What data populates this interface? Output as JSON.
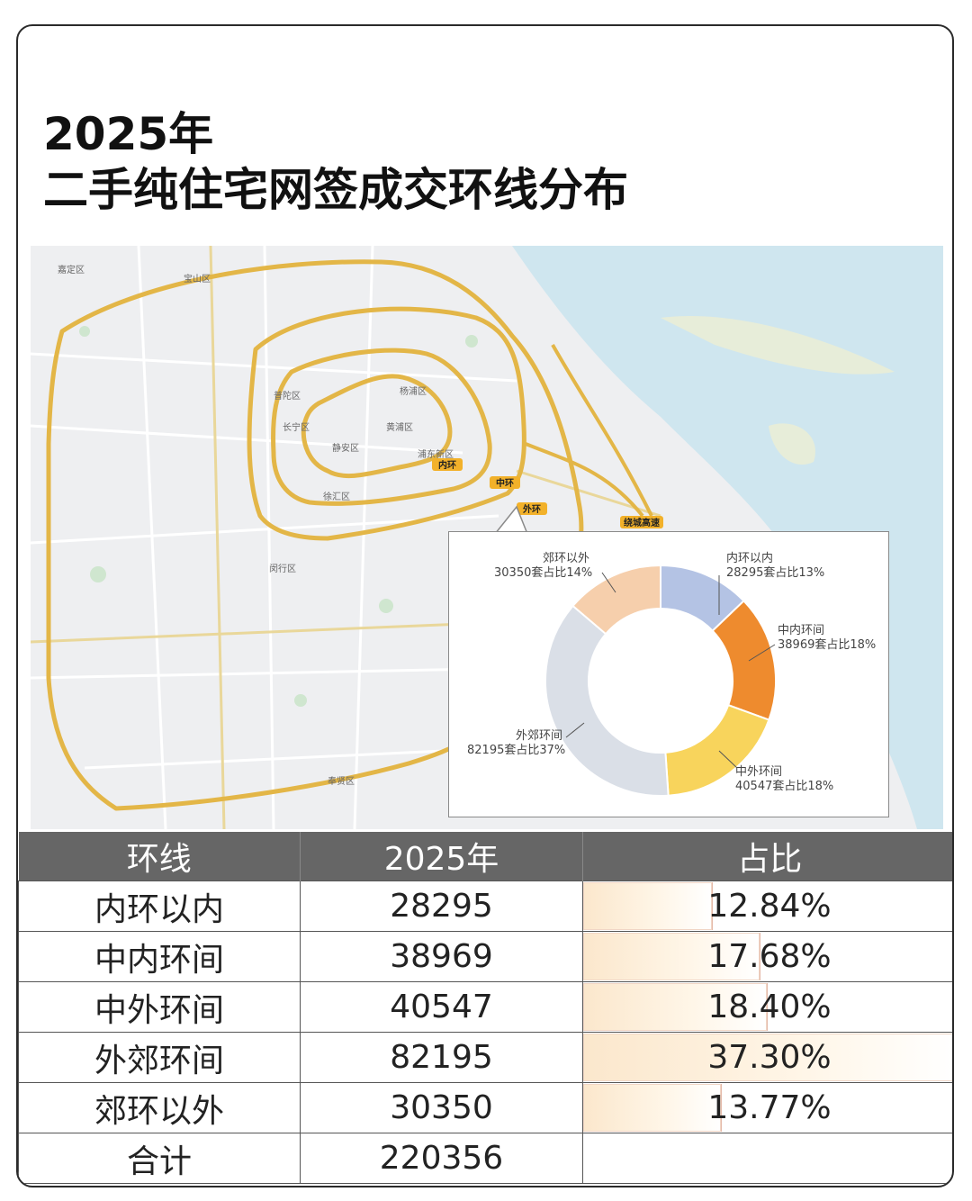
{
  "header": {
    "title_line1": "2025年",
    "title_line2": "二手纯住宅网签成交环线分布"
  },
  "map": {
    "ring_labels": {
      "inner": "内环",
      "middle": "中环",
      "outer": "外环",
      "expressway": "绕城高速"
    },
    "place_labels": [
      "静安区",
      "长宁区",
      "黄浦区",
      "徐汇区",
      "杨浦区",
      "浦东新区",
      "闵行区",
      "嘉定区",
      "宝山区",
      "普陀区",
      "奉贤区"
    ]
  },
  "chart_data": {
    "type": "pie",
    "style": "donut",
    "slices": [
      {
        "name": "内环以内",
        "label": "28295套占比13%",
        "value": 28295,
        "percent": 13,
        "color": "#b4c3e4"
      },
      {
        "name": "中内环间",
        "label": "38969套占比18%",
        "value": 38969,
        "percent": 18,
        "color": "#ee8b2e"
      },
      {
        "name": "中外环间",
        "label": "40547套占比18%",
        "value": 40547,
        "percent": 18,
        "color": "#f8d45c"
      },
      {
        "name": "外郊环间",
        "label": "82195套占比37%",
        "value": 82195,
        "percent": 37,
        "color": "#dadfe7"
      },
      {
        "name": "郊环以外",
        "label": "30350套占比14%",
        "value": 30350,
        "percent": 14,
        "color": "#f6cfac"
      }
    ]
  },
  "table": {
    "headers": [
      "环线",
      "2025年",
      "占比"
    ],
    "rows": [
      {
        "ring": "内环以内",
        "count": "28295",
        "share": "12.84%",
        "share_value": 12.84
      },
      {
        "ring": "中内环间",
        "count": "38969",
        "share": "17.68%",
        "share_value": 17.68
      },
      {
        "ring": "中外环间",
        "count": "40547",
        "share": "18.40%",
        "share_value": 18.4
      },
      {
        "ring": "外郊环间",
        "count": "82195",
        "share": "37.30%",
        "share_value": 37.3
      },
      {
        "ring": "郊环以外",
        "count": "30350",
        "share": "13.77%",
        "share_value": 13.77
      }
    ],
    "total": {
      "label": "合计",
      "count": "220356"
    }
  }
}
